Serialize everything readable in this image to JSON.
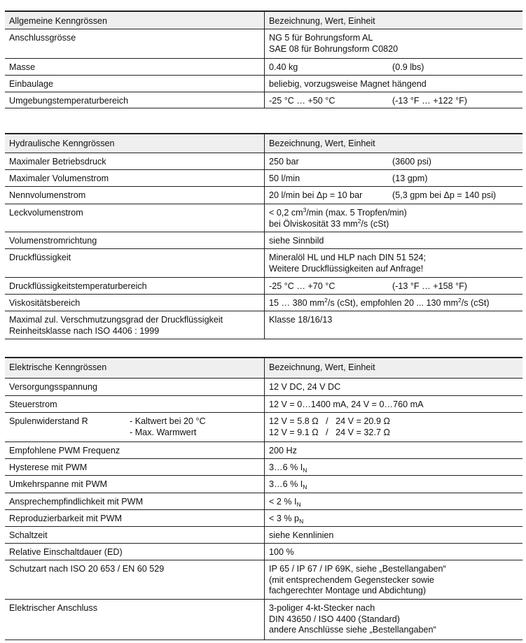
{
  "tables": [
    {
      "header": [
        "Allgemeine Kenngrössen",
        "Bezeichnung, Wert, Einheit"
      ],
      "rows": [
        {
          "label": [
            "Anschlussgrösse"
          ],
          "value": [
            [
              {
                "t": "NG 5 für Bohrungsform AL"
              }
            ],
            [
              {
                "t": "SAE 08 für Bohrungsform C0820"
              }
            ]
          ]
        },
        {
          "label": [
            "Masse"
          ],
          "value": [
            [
              {
                "t": "0.40 kg"
              },
              {
                "t": "(0.9 lbs)",
                "tab": true
              }
            ]
          ]
        },
        {
          "label": [
            "Einbaulage"
          ],
          "value": [
            [
              {
                "t": "beliebig, vorzugsweise Magnet hängend"
              }
            ]
          ]
        },
        {
          "label": [
            "Umgebungstemperaturbereich"
          ],
          "value": [
            [
              {
                "t": "-25 °C … +50 °C"
              },
              {
                "t": "(-13 °F … +122 °F)",
                "tab": true
              }
            ]
          ]
        }
      ]
    },
    {
      "header": [
        "Hydraulische Kenngrössen",
        "Bezeichnung, Wert, Einheit"
      ],
      "rows": [
        {
          "label": [
            "Maximaler Betriebsdruck"
          ],
          "value": [
            [
              {
                "t": "250 bar"
              },
              {
                "t": "(3600 psi)",
                "tab": true
              }
            ]
          ]
        },
        {
          "label": [
            "Maximaler Volumenstrom"
          ],
          "value": [
            [
              {
                "t": "50 l/min"
              },
              {
                "t": "(13 gpm)",
                "tab": true
              }
            ]
          ]
        },
        {
          "label": [
            "Nennvolumenstrom"
          ],
          "value": [
            [
              {
                "t": "20 l/min bei Δp = 10 bar"
              },
              {
                "t": "(5,3 gpm bei Δp = 140 psi)",
                "tab": true
              }
            ]
          ]
        },
        {
          "label": [
            "Leckvolumenstrom"
          ],
          "value": [
            [
              {
                "t": "< 0,2 cm"
              },
              {
                "sup": "3"
              },
              {
                "t": "/min (max. 5 Tropfen/min)"
              }
            ],
            [
              {
                "t": "bei Ölviskosität 33 mm"
              },
              {
                "sup": "2"
              },
              {
                "t": "/s (cSt)"
              }
            ]
          ]
        },
        {
          "label": [
            "Volumenstromrichtung"
          ],
          "value": [
            [
              {
                "t": "siehe Sinnbild"
              }
            ]
          ]
        },
        {
          "label": [
            "Druckflüssigkeit"
          ],
          "value": [
            [
              {
                "t": "Mineralöl HL und HLP nach DIN 51 524;"
              }
            ],
            [
              {
                "t": "Weitere Druckflüssigkeiten auf Anfrage!"
              }
            ]
          ]
        },
        {
          "label": [
            "Druckflüssigkeitstemperaturbereich"
          ],
          "value": [
            [
              {
                "t": "-25 °C … +70 °C"
              },
              {
                "t": "(-13 °F … +158 °F)",
                "tab": true
              }
            ]
          ]
        },
        {
          "label": [
            "Viskositätsbereich"
          ],
          "value": [
            [
              {
                "t": "15 … 380 mm"
              },
              {
                "sup": "2"
              },
              {
                "t": "/s (cSt), empfohlen 20 ... 130 mm"
              },
              {
                "sup": "2"
              },
              {
                "t": "/s (cSt)"
              }
            ]
          ]
        },
        {
          "label": [
            "Maximal zul. Verschmutzungsgrad der Druckflüssigkeit",
            "Reinheitsklasse nach ISO 4406 : 1999"
          ],
          "value": [
            [
              {
                "t": "Klasse 18/16/13"
              }
            ]
          ]
        }
      ]
    },
    {
      "header": [
        "Elektrische Kenngrössen",
        "Bezeichnung, Wert, Einheit"
      ],
      "rows": [
        {
          "label": [
            "Versorgungsspannung"
          ],
          "value": [
            [
              {
                "t": "12 V DC, 24 V DC"
              }
            ]
          ]
        },
        {
          "label": [
            "Steuerstrom"
          ],
          "value": [
            [
              {
                "t": "12 V = 0…1400 mA, 24 V = 0…760 mA"
              }
            ]
          ]
        },
        {
          "label": [
            "Spulenwiderstand R"
          ],
          "label2": [
            "- Kaltwert bei 20 °C",
            "- Max. Warmwert"
          ],
          "value": [
            [
              {
                "t": "12 V = 5.8 Ω   /   24 V = 20.9 Ω"
              }
            ],
            [
              {
                "t": "12 V = 9.1 Ω   /   24 V = 32.7 Ω"
              }
            ]
          ]
        },
        {
          "label": [
            "Empfohlene PWM Frequenz"
          ],
          "value": [
            [
              {
                "t": "200 Hz"
              }
            ]
          ]
        },
        {
          "label": [
            "Hysterese mit PWM"
          ],
          "value": [
            [
              {
                "t": "3…6 % I"
              },
              {
                "sub": "N"
              }
            ]
          ]
        },
        {
          "label": [
            "Umkehrspanne mit PWM"
          ],
          "value": [
            [
              {
                "t": "3…6 % I"
              },
              {
                "sub": "N"
              }
            ]
          ]
        },
        {
          "label": [
            "Ansprechempfindlichkeit mit PWM"
          ],
          "value": [
            [
              {
                "t": "< 2 % I"
              },
              {
                "sub": "N"
              }
            ]
          ]
        },
        {
          "label": [
            "Reproduzierbarkeit mit PWM"
          ],
          "value": [
            [
              {
                "t": "< 3 % p"
              },
              {
                "sub": "N"
              }
            ]
          ]
        },
        {
          "label": [
            "Schaltzeit"
          ],
          "value": [
            [
              {
                "t": "siehe Kennlinien"
              }
            ]
          ]
        },
        {
          "label": [
            "Relative Einschaltdauer (ED)"
          ],
          "value": [
            [
              {
                "t": "100 %"
              }
            ]
          ]
        },
        {
          "label": [
            "Schutzart nach ISO 20 653 / EN 60 529"
          ],
          "value": [
            [
              {
                "t": "IP 65 / IP 67 / IP 69K, siehe „Bestellangaben“"
              }
            ],
            [
              {
                "t": "(mit entsprechendem Gegenstecker sowie"
              }
            ],
            [
              {
                "t": "fachgerechter Montage und Abdichtung)"
              }
            ]
          ]
        },
        {
          "label": [
            "Elektrischer Anschluss"
          ],
          "value": [
            [
              {
                "t": "3-poliger 4-kt-Stecker nach"
              }
            ],
            [
              {
                "t": "DIN 43650 / ISO 4400 (Standard)"
              }
            ],
            [
              {
                "t": "andere Anschlüsse siehe „Bestellangaben“"
              }
            ]
          ]
        }
      ]
    }
  ]
}
